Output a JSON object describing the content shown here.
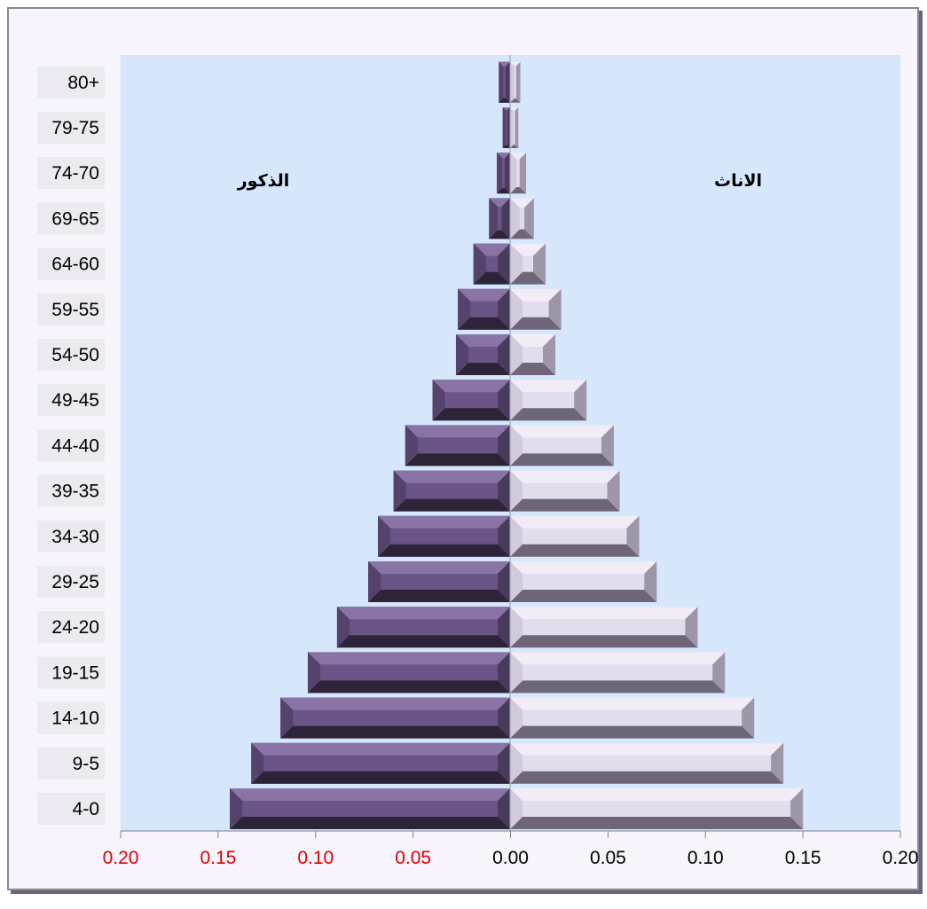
{
  "chart_data": {
    "type": "bar",
    "orientation": "horizontal",
    "categories": [
      "4-0",
      "9-5",
      "14-10",
      "19-15",
      "24-20",
      "29-25",
      "34-30",
      "39-35",
      "44-40",
      "49-45",
      "54-50",
      "59-55",
      "64-60",
      "69-65",
      "74-70",
      "79-75",
      "80+"
    ],
    "series": [
      {
        "name": "الذكور",
        "side": "left",
        "values": [
          0.144,
          0.133,
          0.118,
          0.104,
          0.089,
          0.073,
          0.068,
          0.06,
          0.054,
          0.04,
          0.028,
          0.027,
          0.019,
          0.011,
          0.007,
          0.004,
          0.006
        ]
      },
      {
        "name": "الاناث",
        "side": "right",
        "values": [
          0.15,
          0.14,
          0.125,
          0.11,
          0.096,
          0.075,
          0.066,
          0.056,
          0.053,
          0.039,
          0.023,
          0.026,
          0.018,
          0.012,
          0.008,
          0.004,
          0.005
        ]
      }
    ],
    "x_tick_labels": [
      "0.20",
      "0.15",
      "0.10",
      "0.05",
      "0.00",
      "0.05",
      "0.10",
      "0.15",
      "0.20"
    ],
    "xlim": [
      -0.2,
      0.2
    ],
    "grid": false,
    "colors": {
      "plot_background": "#d6e6fb",
      "male_bar": "#6b5486",
      "male_bar_dark": "#3e304e",
      "female_bar": "#e3dcec",
      "female_bar_dark": "#7c7488",
      "negative_tick": "#e00000",
      "positive_tick": "#000000",
      "category_label_bg": "#ece9f1"
    }
  }
}
